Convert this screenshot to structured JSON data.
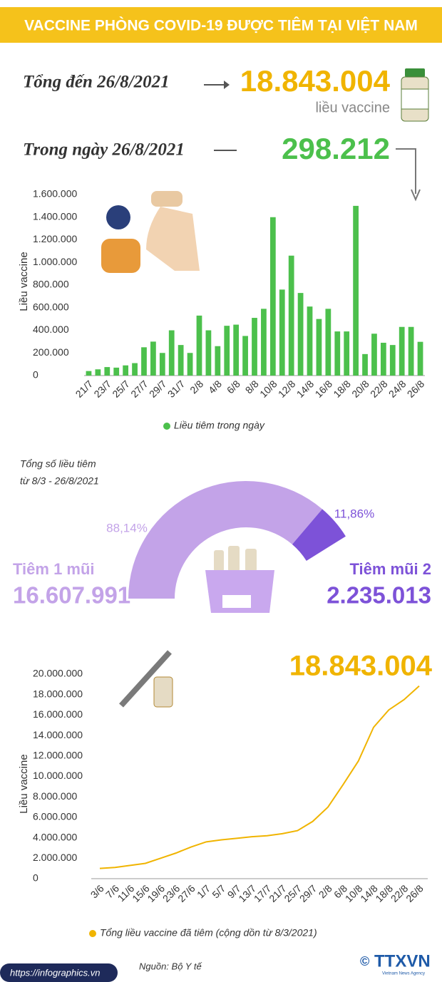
{
  "header": {
    "title": "VACCINE PHÒNG COVID-19 ĐƯỢC TIÊM TẠI VIỆT NAM"
  },
  "summary": {
    "total_label": "Tổng đến 26/8/2021",
    "total": "18.843.004",
    "total_unit": "liều vaccine",
    "daily_label": "Trong ngày 26/8/2021",
    "daily": "298.212"
  },
  "chart_data": [
    {
      "type": "bar",
      "y_label": "Liều vaccine",
      "categories": [
        "21/7",
        null,
        "23/7",
        null,
        "25/7",
        null,
        "27/7",
        null,
        "29/7",
        null,
        "31/7",
        null,
        "2/8",
        null,
        "4/8",
        null,
        "6/8",
        null,
        "8/8",
        null,
        "10/8",
        null,
        "12/8",
        null,
        "14/8",
        null,
        "16/8",
        null,
        "18/8",
        null,
        "20/8",
        null,
        "22/8",
        null,
        "24/8",
        null,
        "26/8"
      ],
      "series": [
        {
          "name": "Liều tiêm trong ngày",
          "color": "#4cc04c",
          "values": [
            40000,
            55000,
            75000,
            70000,
            90000,
            110000,
            250000,
            300000,
            200000,
            400000,
            270000,
            200000,
            530000,
            400000,
            260000,
            440000,
            450000,
            350000,
            510000,
            590000,
            1400000,
            760000,
            1060000,
            730000,
            610000,
            500000,
            590000,
            390000,
            390000,
            1500000,
            190000,
            370000,
            290000,
            270000,
            430000,
            430000,
            298212
          ]
        }
      ],
      "ylim": [
        0,
        1600000
      ],
      "yticks": [
        0,
        {
          "value": 200000,
          "label": "200.000"
        },
        {
          "value": 400000,
          "label": "400.000"
        },
        {
          "value": 600000,
          "label": "600.000"
        },
        {
          "value": 800000,
          "label": "800.000"
        },
        {
          "value": 1000000,
          "label": "1.000.000"
        },
        {
          "value": 1200000,
          "label": "1.200.000"
        },
        {
          "value": 1400000,
          "label": "1.400.000"
        },
        {
          "value": 1600000,
          "label": "1.600.000"
        }
      ],
      "legend": "bottom"
    },
    {
      "type": "donut",
      "subtitle_line1": "Tổng số liều tiêm",
      "subtitle_line2": "từ 8/3 - 26/8/2021",
      "categories": [
        "Tiêm 1 mũi",
        "Tiêm mũi 2"
      ],
      "values": [
        88.14,
        11.86
      ],
      "value_labels": [
        "88,14%",
        "11,86%"
      ],
      "colors": [
        "#c3a3e8",
        "#7d52d8"
      ],
      "totals": [
        16607991,
        2235013
      ],
      "total_labels": [
        "16.607.991",
        "2.235.013"
      ]
    },
    {
      "type": "line",
      "y_label": "Liều vaccine",
      "annotation": "18.843.004",
      "categories": [
        "3/6",
        "7/6",
        "11/6",
        "15/6",
        "19/6",
        "23/6",
        "27/6",
        "1/7",
        "5/7",
        "9/7",
        "13/7",
        "17/7",
        "21/7",
        "25/7",
        "29/7",
        "2/8",
        "6/8",
        "10/8",
        "14/8",
        "18/8",
        "22/8",
        "26/8"
      ],
      "series": [
        {
          "name": "Tổng liều vaccine đã tiêm (cộng dồn từ 8/3/2021)",
          "color": "#f0b400",
          "values": [
            1000000,
            1100000,
            1300000,
            1500000,
            2000000,
            2500000,
            3100000,
            3600000,
            3800000,
            3950000,
            4100000,
            4200000,
            4400000,
            4700000,
            5600000,
            7000000,
            9200000,
            11500000,
            14800000,
            16500000,
            17500000,
            18843004
          ]
        }
      ],
      "ylim": [
        0,
        20000000
      ],
      "yticks": [
        0,
        {
          "value": 2000000,
          "label": "2.000.000"
        },
        {
          "value": 4000000,
          "label": "4.000.000"
        },
        {
          "value": 6000000,
          "label": "6.000.000"
        },
        {
          "value": 8000000,
          "label": "8.000.000"
        },
        {
          "value": 10000000,
          "label": "10.000.000"
        },
        {
          "value": 12000000,
          "label": "12.000.000"
        },
        {
          "value": 14000000,
          "label": "14.000.000"
        },
        {
          "value": 16000000,
          "label": "16.000.000"
        },
        {
          "value": 18000000,
          "label": "18.000.000"
        },
        {
          "value": 20000000,
          "label": "20.000.000"
        }
      ],
      "legend": "bottom"
    }
  ],
  "footer": {
    "source": "Nguồn: Bộ Y tế",
    "url": "https://infographics.vn",
    "copyright": "©",
    "logo": "TTXVN",
    "logo_subtitle": "Vietnam News Agency"
  }
}
